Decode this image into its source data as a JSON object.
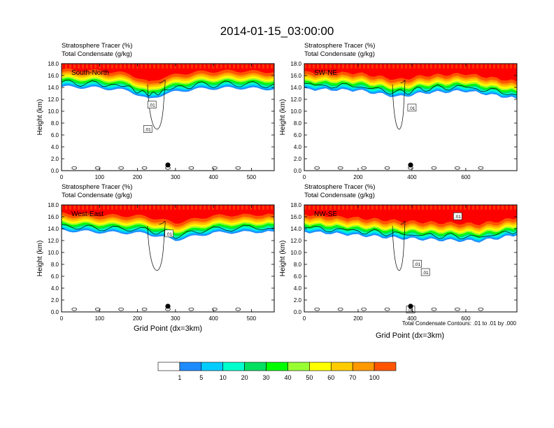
{
  "title": "2014-01-15_03:00:00",
  "panel_header": [
    "Stratosphere Tracer   (%)",
    "Total Condensate   (g/kg)"
  ],
  "contour_note": "Total Condensate Contours: .01 to .01 by .000",
  "xlabel": "Grid Point (dx=3km)",
  "ylabel": "Height (km)",
  "contour_label": ".01",
  "colors": {
    "levels": [
      "#ffffff",
      "#1e8cff",
      "#00ccff",
      "#00ffcc",
      "#00e060",
      "#00ff00",
      "#99ff33",
      "#ffff00",
      "#ffcc00",
      "#ff9900",
      "#ff5500",
      "#ff0000"
    ],
    "contour": "#000000"
  },
  "colorbar": {
    "ticks": [
      "1",
      "5",
      "10",
      "20",
      "30",
      "40",
      "50",
      "60",
      "70",
      "100"
    ]
  },
  "chart_data": [
    {
      "type": "heatmap",
      "name": "South-North",
      "xlim": [
        0,
        560
      ],
      "ylim": [
        0,
        18
      ],
      "xticks": [
        "0",
        "100",
        "200",
        "300",
        "400",
        "500"
      ],
      "yticks": [
        "0.0",
        "2.0",
        "4.0",
        "6.0",
        "8.0",
        "10.0",
        "12.0",
        "14.0",
        "16.0",
        "18.0"
      ],
      "marker_x": 280,
      "contour_labels": [
        {
          "x": 238,
          "y": 11.1
        },
        {
          "x": 227,
          "y": 7.0
        }
      ],
      "stratosphere_base": [
        [
          0,
          15.2
        ],
        [
          100,
          15.0
        ],
        [
          180,
          14.5
        ],
        [
          230,
          13.0
        ],
        [
          270,
          14.0
        ],
        [
          350,
          14.8
        ],
        [
          450,
          15.0
        ],
        [
          560,
          14.8
        ]
      ]
    },
    {
      "type": "heatmap",
      "name": "SW-NE",
      "xlim": [
        0,
        790
      ],
      "ylim": [
        0,
        18
      ],
      "xticks": [
        "0",
        "200",
        "400",
        "600"
      ],
      "yticks": [
        "0.0",
        "2.0",
        "4.0",
        "6.0",
        "8.0",
        "10.0",
        "12.0",
        "14.0",
        "16.0",
        "18.0"
      ],
      "marker_x": 395,
      "contour_labels": [
        {
          "x": 400,
          "y": 10.6
        }
      ],
      "stratosphere_base": [
        [
          0,
          14.8
        ],
        [
          200,
          14.6
        ],
        [
          350,
          13.5
        ],
        [
          450,
          14.2
        ],
        [
          600,
          14.5
        ],
        [
          790,
          13.2
        ]
      ]
    },
    {
      "type": "heatmap",
      "name": "West-East",
      "xlim": [
        0,
        560
      ],
      "ylim": [
        0,
        18
      ],
      "xticks": [
        "0",
        "100",
        "200",
        "300",
        "400",
        "500"
      ],
      "yticks": [
        "0.0",
        "2.0",
        "4.0",
        "6.0",
        "8.0",
        "10.0",
        "12.0",
        "14.0",
        "16.0",
        "18.0"
      ],
      "marker_x": 280,
      "contour_labels": [
        {
          "x": 283,
          "y": 13.2
        }
      ],
      "stratosphere_base": [
        [
          0,
          14.8
        ],
        [
          100,
          14.5
        ],
        [
          220,
          14.3
        ],
        [
          300,
          13.2
        ],
        [
          400,
          14.4
        ],
        [
          560,
          14.6
        ]
      ]
    },
    {
      "type": "heatmap",
      "name": "NW-SE",
      "xlim": [
        0,
        790
      ],
      "ylim": [
        0,
        18
      ],
      "xticks": [
        "0",
        "200",
        "400",
        "600"
      ],
      "yticks": [
        "0.0",
        "2.0",
        "4.0",
        "6.0",
        "8.0",
        "10.0",
        "12.0",
        "14.0",
        "16.0",
        "18.0"
      ],
      "marker_x": 395,
      "contour_labels": [
        {
          "x": 570,
          "y": 16.1
        },
        {
          "x": 420,
          "y": 8.1
        },
        {
          "x": 450,
          "y": 6.7
        },
        {
          "x": 395,
          "y": 0.4
        }
      ],
      "stratosphere_base": [
        [
          0,
          14.6
        ],
        [
          200,
          14.0
        ],
        [
          350,
          13.5
        ],
        [
          500,
          13.2
        ],
        [
          650,
          13.0
        ],
        [
          790,
          14.0
        ]
      ]
    }
  ]
}
